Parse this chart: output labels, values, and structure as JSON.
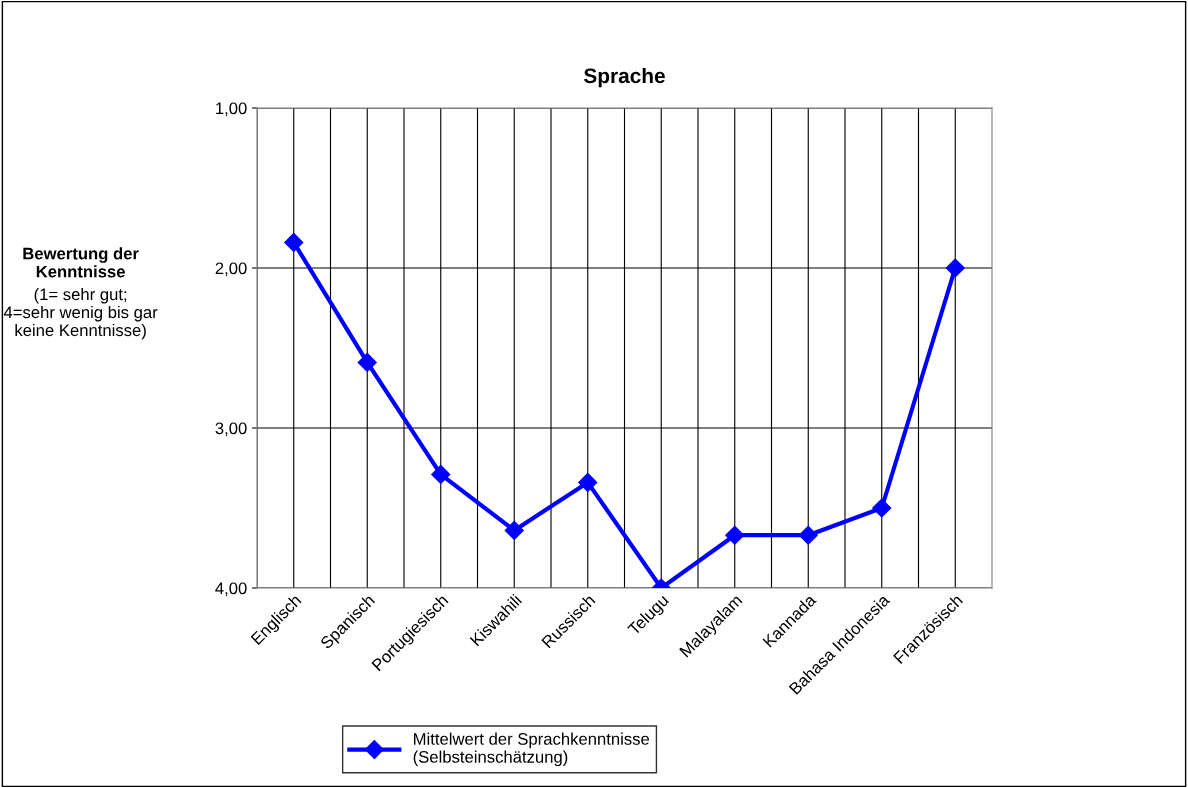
{
  "chart_data": {
    "type": "line",
    "title": "Sprache",
    "ylabel": "Bewertung der\nKenntnisse",
    "annotations": [
      "(1= sehr gut;\n4=sehr wenig bis gar\nkeine Kenntnisse)"
    ],
    "categories": [
      "Englisch",
      "Spanisch",
      "Portugiesisch",
      "Kiswahili",
      "Russisch",
      "Telugu",
      "Malayalam",
      "Kannada",
      "Bahasa Indonesia",
      "Französisch"
    ],
    "series": [
      {
        "name": "Mittelwert der Sprachkenntnisse\n(Selbsteinschätzung)",
        "color": "#0000ff",
        "values": [
          1.84,
          2.59,
          3.29,
          3.64,
          3.34,
          4.0,
          3.67,
          3.67,
          3.5,
          2.0
        ]
      }
    ],
    "ylim": [
      4.0,
      1.0
    ],
    "yticks": [
      {
        "value": 1,
        "label": "1,00"
      },
      {
        "value": 2,
        "label": "2,00"
      },
      {
        "value": 3,
        "label": "3,00"
      },
      {
        "value": 4,
        "label": "4,00"
      }
    ],
    "grid": true,
    "legend": "bottom",
    "marker": "diamond",
    "line_style": "solid"
  }
}
